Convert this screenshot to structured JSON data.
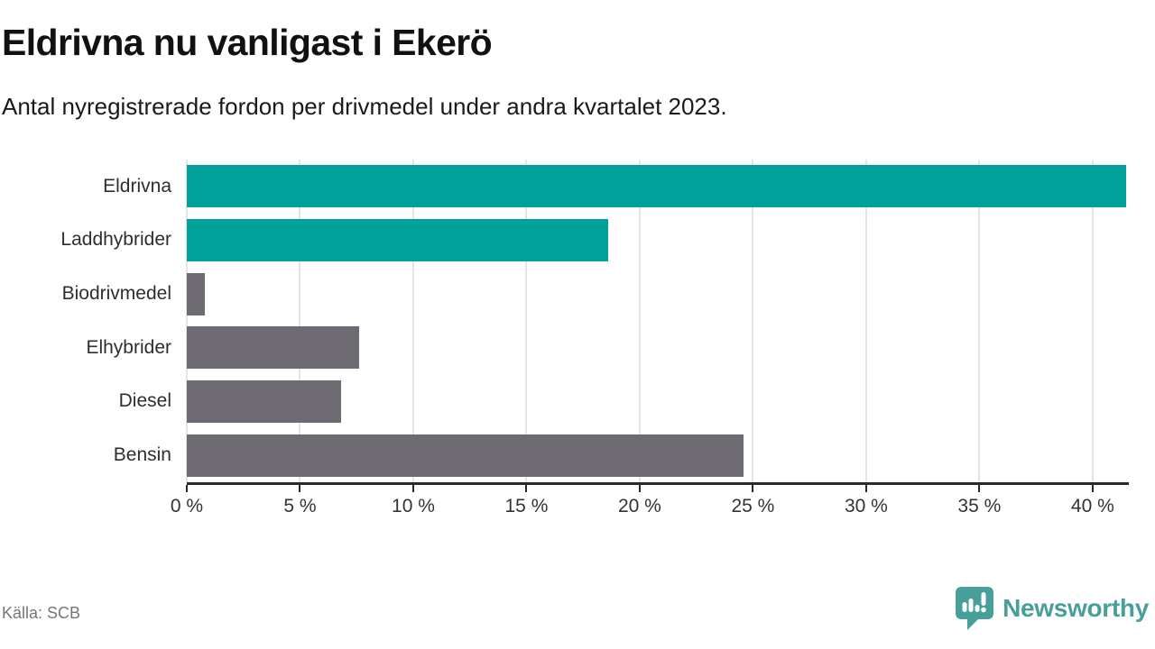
{
  "chart_data": {
    "type": "bar",
    "orientation": "horizontal",
    "title": "Eldrivna nu vanligast i Ekerö",
    "subtitle": "Antal nyregistrerade fordon per drivmedel under andra kvartalet 2023.",
    "categories": [
      "Eldrivna",
      "Laddhybrider",
      "Biodrivmedel",
      "Elhybrider",
      "Diesel",
      "Bensin"
    ],
    "values": [
      41.5,
      18.6,
      0.8,
      7.6,
      6.8,
      24.6
    ],
    "unit": "%",
    "xlim": [
      0,
      41.6
    ],
    "xticks": [
      0,
      5,
      10,
      15,
      20,
      25,
      30,
      35,
      40
    ],
    "xtick_labels": [
      "0 %",
      "5 %",
      "10 %",
      "15 %",
      "20 %",
      "25 %",
      "30 %",
      "35 %",
      "40 %"
    ],
    "grid": true,
    "legend": "none",
    "highlight_color": "#00a19a",
    "default_color": "#6d6a71",
    "bar_colors": [
      "#00a19a",
      "#00a19a",
      "#6d6a71",
      "#6d6a71",
      "#6d6a71",
      "#6d6a71"
    ],
    "axis_color": "#2a2a2a",
    "gridline_color": "#e4e4e4"
  },
  "footer": {
    "source": "Källa: SCB",
    "brand": "Newsworthy",
    "brand_color": "#479f99"
  }
}
